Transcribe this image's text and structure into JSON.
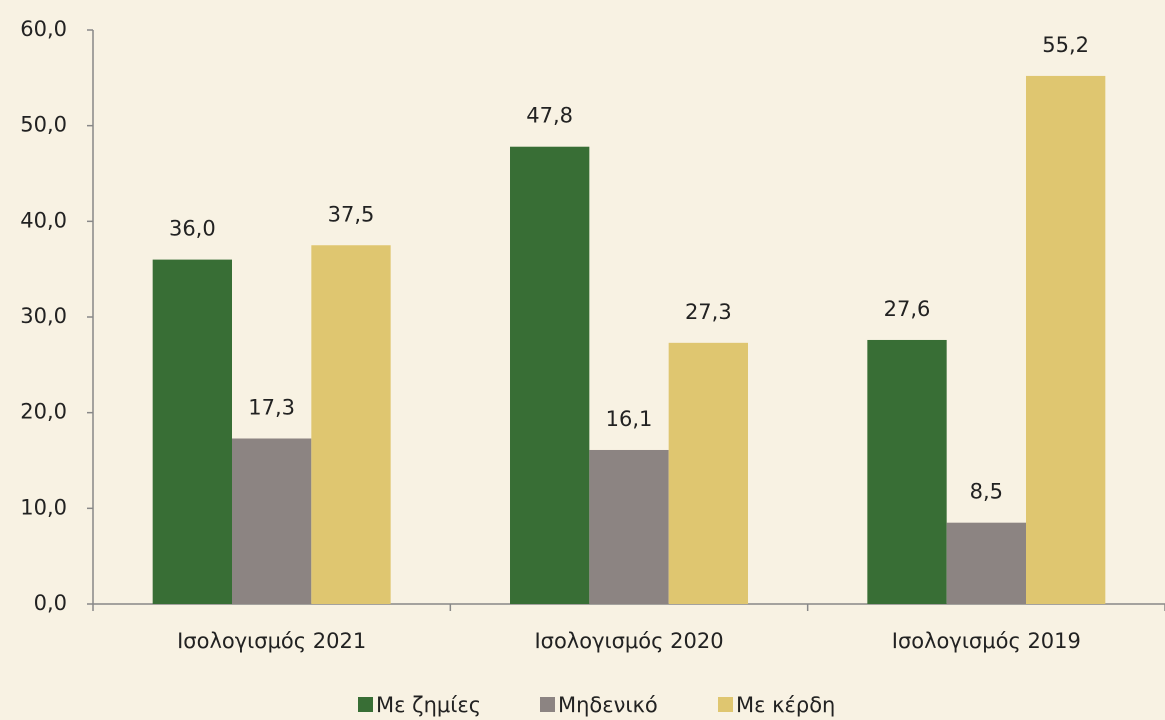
{
  "chart_data": {
    "type": "bar",
    "categories": [
      "Ισολογισμός 2021",
      "Ισολογισμός 2020",
      "Ισολογισμός 2019"
    ],
    "series": [
      {
        "name": "Με ζημίες",
        "color": "#386e35",
        "values": [
          36.0,
          47.8,
          27.6
        ],
        "value_labels": [
          "36,0",
          "47,8",
          "27,6"
        ]
      },
      {
        "name": "Μηδενικό",
        "color": "#8c8482",
        "values": [
          17.3,
          16.1,
          8.5
        ],
        "value_labels": [
          "17,3",
          "16,1",
          "8,5"
        ]
      },
      {
        "name": "Με κέρδη",
        "color": "#dfc670",
        "values": [
          37.5,
          27.3,
          55.2
        ],
        "value_labels": [
          "37,5",
          "27,3",
          "55,2"
        ]
      }
    ],
    "ylim": [
      0,
      60
    ],
    "yticks": [
      {
        "value": 0,
        "label": "0,0"
      },
      {
        "value": 10,
        "label": "10,0"
      },
      {
        "value": 20,
        "label": "20,0"
      },
      {
        "value": 30,
        "label": "30,0"
      },
      {
        "value": 40,
        "label": "40,0"
      },
      {
        "value": 50,
        "label": "50,0"
      },
      {
        "value": 60,
        "label": "60,0"
      }
    ],
    "legend": "bottom"
  }
}
